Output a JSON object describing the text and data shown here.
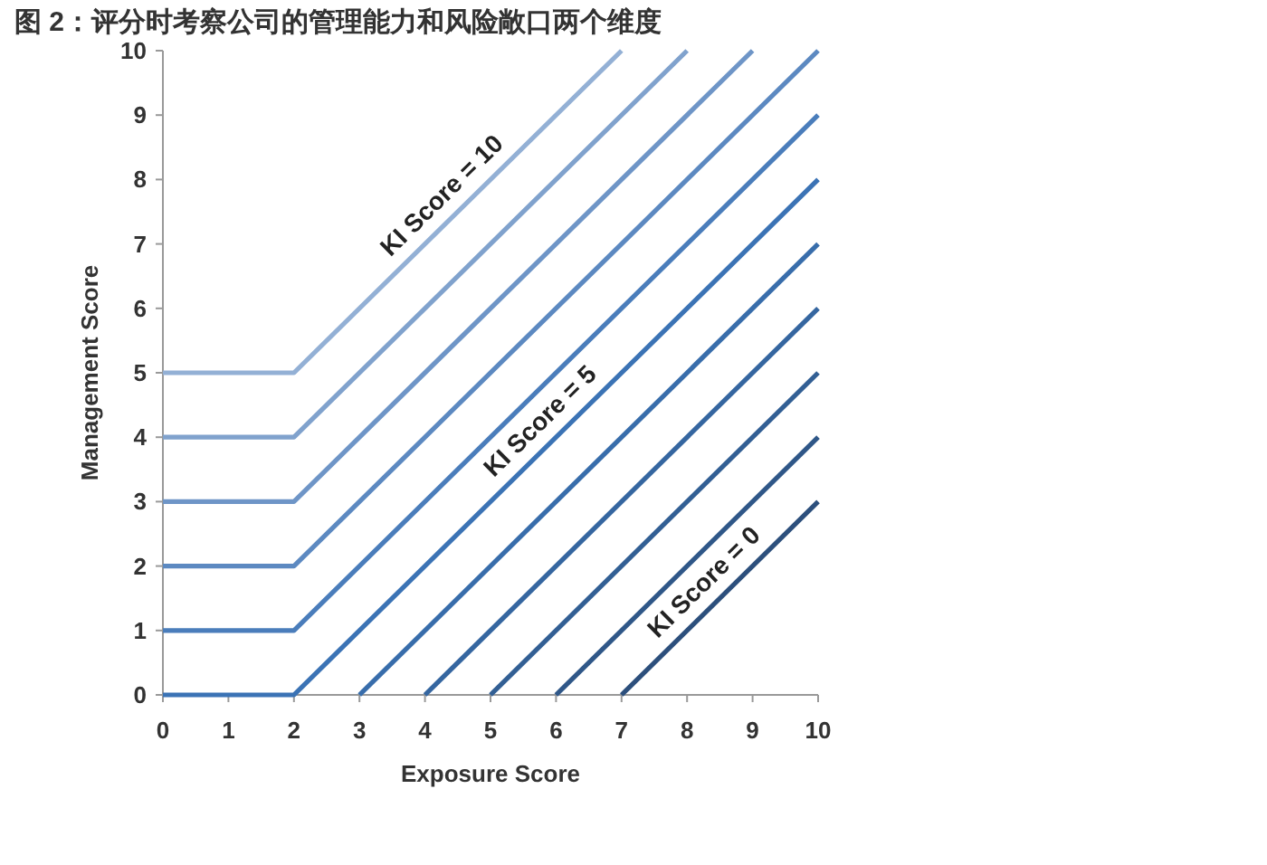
{
  "chart_data": {
    "type": "line",
    "title": "图 2：评分时考察公司的管理能力和风险敞口两个维度",
    "xlabel": "Exposure Score",
    "ylabel": "Management Score",
    "xlim": [
      0,
      10
    ],
    "ylim": [
      0,
      10
    ],
    "xticks": [
      0,
      1,
      2,
      3,
      4,
      5,
      6,
      7,
      8,
      9,
      10
    ],
    "yticks": [
      0,
      1,
      2,
      3,
      4,
      5,
      6,
      7,
      8,
      9,
      10
    ],
    "grid": false,
    "legend": false,
    "marker": "none",
    "line_style": "solid",
    "series": [
      {
        "name": "KI Score = 0",
        "color": "#2c4f7c",
        "x": [
          7,
          10
        ],
        "values": [
          0,
          3
        ]
      },
      {
        "color": "#2f5788",
        "x": [
          6,
          10
        ],
        "values": [
          0,
          4
        ]
      },
      {
        "color": "#325f94",
        "x": [
          5,
          10
        ],
        "values": [
          0,
          5
        ]
      },
      {
        "color": "#3566a0",
        "x": [
          4,
          10
        ],
        "values": [
          0,
          6
        ]
      },
      {
        "color": "#386dab",
        "x": [
          3,
          10
        ],
        "values": [
          0,
          7
        ]
      },
      {
        "name": "KI Score = 5",
        "color": "#3b73b5",
        "x": [
          0,
          2,
          10
        ],
        "values": [
          0,
          0,
          8
        ]
      },
      {
        "color": "#4a7dbb",
        "x": [
          0,
          2,
          10
        ],
        "values": [
          1,
          1,
          9
        ]
      },
      {
        "color": "#5c89c1",
        "x": [
          0,
          2,
          10
        ],
        "values": [
          2,
          2,
          10
        ]
      },
      {
        "color": "#6e95c7",
        "x": [
          0,
          2,
          9
        ],
        "values": [
          3,
          3,
          10
        ]
      },
      {
        "color": "#80a2cd",
        "x": [
          0,
          2,
          8
        ],
        "values": [
          4,
          4,
          10
        ]
      },
      {
        "name": "KI Score = 10",
        "color": "#93b0d5",
        "x": [
          0,
          2,
          7
        ],
        "values": [
          5,
          5,
          10
        ]
      }
    ]
  }
}
